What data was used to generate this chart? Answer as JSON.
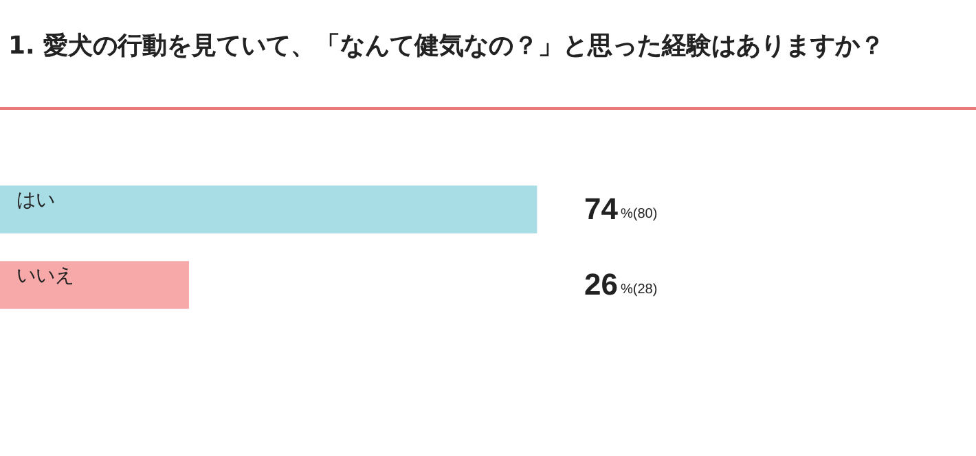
{
  "chart_data": {
    "type": "bar",
    "orientation": "horizontal",
    "title": "1. 愛犬の行動を見ていて、「なんて健気なの？」と思った経験はありますか？",
    "categories": [
      "はい",
      "いいえ"
    ],
    "values": [
      74,
      26
    ],
    "colors": [
      "#a8dde6",
      "#f7a8a8"
    ],
    "value_labels": [
      "74%(80)",
      "26%(28)"
    ],
    "tick_labels": false,
    "legend": false
  }
}
